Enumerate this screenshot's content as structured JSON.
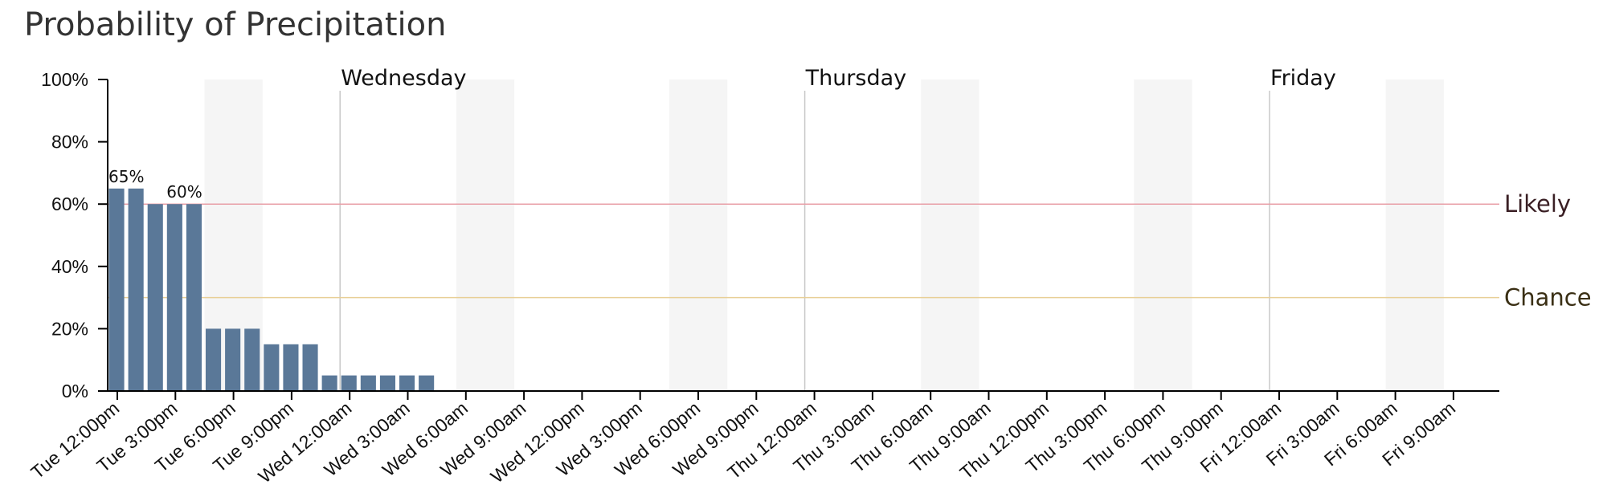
{
  "chart_data": {
    "type": "bar",
    "title": "Probability of Precipitation",
    "ylim": [
      0,
      100
    ],
    "y_ticks": [
      "0%",
      "20%",
      "40%",
      "60%",
      "80%",
      "100%"
    ],
    "x_ticks": [
      "Tue 12:00pm",
      "Tue 3:00pm",
      "Tue 6:00pm",
      "Tue 9:00pm",
      "Wed 12:00am",
      "Wed 3:00am",
      "Wed 6:00am",
      "Wed 9:00am",
      "Wed 12:00pm",
      "Wed 3:00pm",
      "Wed 6:00pm",
      "Wed 9:00pm",
      "Thu 12:00am",
      "Thu 3:00am",
      "Thu 6:00am",
      "Thu 9:00am",
      "Thu 12:00pm",
      "Thu 3:00pm",
      "Thu 6:00pm",
      "Thu 9:00pm",
      "Fri 12:00am",
      "Fri 3:00am",
      "Fri 6:00am",
      "Fri 9:00am"
    ],
    "bar_interval_hours": 1,
    "values": [
      65,
      65,
      60,
      60,
      60,
      20,
      20,
      20,
      15,
      15,
      15,
      5,
      5,
      5,
      5,
      5,
      5
    ],
    "data_labels": [
      {
        "hour_index": 0,
        "text": "65%"
      },
      {
        "hour_index": 3,
        "text": "60%"
      }
    ],
    "day_markers": [
      {
        "label": "Wednesday",
        "hour_index": 12
      },
      {
        "label": "Thursday",
        "hour_index": 36
      },
      {
        "label": "Friday",
        "hour_index": 60
      }
    ],
    "night_shading_hours": [
      [
        5,
        8
      ],
      [
        18,
        21
      ],
      [
        29,
        32
      ],
      [
        42,
        45
      ],
      [
        53,
        56
      ],
      [
        66,
        69
      ]
    ],
    "thresholds": [
      {
        "label": "Likely",
        "value": 60,
        "color": "#e8a0a8",
        "label_color": "#3a1f24"
      },
      {
        "label": "Chance",
        "value": 30,
        "color": "#e8cf96",
        "label_color": "#3a2f14"
      }
    ],
    "bar_color": "#5a7898",
    "grid": false
  }
}
